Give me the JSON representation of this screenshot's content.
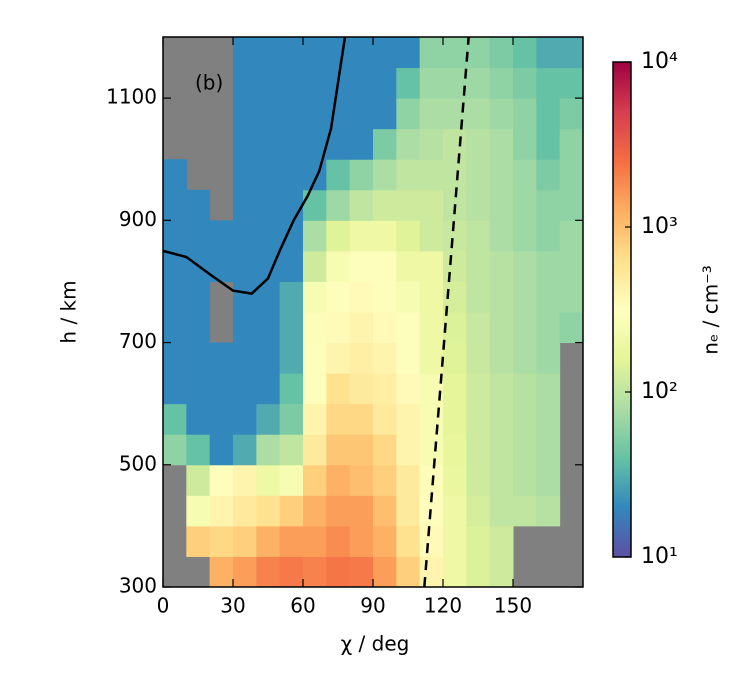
{
  "chart_data": {
    "type": "heatmap",
    "annotation": "(b)",
    "xlabel": "χ / deg",
    "ylabel": "h / km",
    "colorbar_label": "nₑ / cm⁻³",
    "xlim": [
      0,
      180
    ],
    "ylim": [
      300,
      1200
    ],
    "xticks": [
      0,
      30,
      60,
      90,
      120,
      150
    ],
    "yticks": [
      300,
      500,
      700,
      900,
      1100
    ],
    "xbins": [
      0,
      10,
      20,
      30,
      40,
      50,
      60,
      70,
      80,
      90,
      100,
      110,
      120,
      130,
      140,
      150,
      160,
      170,
      180
    ],
    "ybins": [
      300,
      350,
      400,
      450,
      500,
      550,
      600,
      650,
      700,
      750,
      800,
      850,
      900,
      950,
      1000,
      1050,
      1100,
      1150,
      1200
    ],
    "z": [
      [
        null,
        null,
        1200,
        1500,
        2000,
        2200,
        2000,
        2300,
        2200,
        1500,
        800,
        400,
        200,
        140,
        120,
        null,
        null,
        null
      ],
      [
        null,
        800,
        700,
        800,
        1200,
        1500,
        1500,
        1800,
        1500,
        1200,
        600,
        350,
        200,
        140,
        120,
        null,
        null,
        null
      ],
      [
        null,
        250,
        400,
        500,
        600,
        800,
        1200,
        1500,
        1500,
        1000,
        500,
        300,
        200,
        130,
        100,
        100,
        90,
        null
      ],
      [
        null,
        120,
        300,
        400,
        200,
        250,
        800,
        1200,
        1000,
        800,
        500,
        280,
        180,
        120,
        100,
        90,
        80,
        null
      ],
      [
        60,
        40,
        20,
        30,
        80,
        100,
        500,
        900,
        900,
        700,
        400,
        250,
        170,
        120,
        100,
        90,
        80,
        null
      ],
      [
        40,
        20,
        20,
        20,
        30,
        50,
        400,
        700,
        700,
        500,
        400,
        250,
        160,
        120,
        100,
        90,
        80,
        null
      ],
      [
        20,
        20,
        20,
        20,
        20,
        40,
        300,
        600,
        500,
        450,
        350,
        250,
        160,
        120,
        100,
        90,
        80,
        null
      ],
      [
        20,
        20,
        20,
        20,
        20,
        30,
        300,
        400,
        450,
        400,
        300,
        200,
        150,
        110,
        90,
        80,
        70,
        null
      ],
      [
        20,
        20,
        null,
        20,
        20,
        30,
        280,
        350,
        400,
        350,
        300,
        200,
        140,
        110,
        90,
        80,
        70,
        60
      ],
      [
        20,
        20,
        null,
        20,
        20,
        30,
        250,
        300,
        350,
        300,
        250,
        200,
        130,
        100,
        90,
        80,
        70,
        70
      ],
      [
        20,
        20,
        20,
        20,
        20,
        20,
        120,
        250,
        300,
        300,
        200,
        200,
        120,
        100,
        90,
        80,
        70,
        70
      ],
      [
        20,
        20,
        20,
        20,
        20,
        20,
        80,
        150,
        200,
        200,
        150,
        120,
        110,
        100,
        80,
        70,
        60,
        70
      ],
      [
        20,
        20,
        null,
        20,
        20,
        20,
        40,
        70,
        100,
        120,
        120,
        120,
        100,
        90,
        80,
        70,
        60,
        60
      ],
      [
        20,
        null,
        null,
        20,
        20,
        20,
        20,
        40,
        60,
        80,
        100,
        100,
        100,
        90,
        80,
        70,
        50,
        60
      ],
      [
        null,
        null,
        null,
        20,
        20,
        20,
        20,
        20,
        20,
        50,
        80,
        90,
        100,
        90,
        80,
        60,
        40,
        60
      ],
      [
        null,
        null,
        null,
        20,
        20,
        20,
        20,
        20,
        20,
        20,
        60,
        80,
        80,
        80,
        70,
        60,
        40,
        50
      ],
      [
        null,
        null,
        null,
        20,
        20,
        20,
        20,
        20,
        20,
        20,
        40,
        70,
        70,
        70,
        60,
        50,
        40,
        40
      ],
      [
        null,
        null,
        null,
        20,
        20,
        20,
        20,
        20,
        20,
        20,
        20,
        60,
        60,
        60,
        50,
        40,
        30,
        30
      ]
    ],
    "missing_color": "#808080",
    "clim": [
      10,
      10000
    ],
    "color_scale": "log",
    "cticks": [
      {
        "value": 10,
        "label": "10¹"
      },
      {
        "value": 100,
        "label": "10²"
      },
      {
        "value": 1000,
        "label": "10³"
      },
      {
        "value": 10000,
        "label": "10⁴"
      }
    ],
    "colormap": [
      "#5e4fa2",
      "#3288bd",
      "#66c2a5",
      "#abdda4",
      "#e6f598",
      "#ffffbf",
      "#fee08b",
      "#fdae61",
      "#f46d43",
      "#d53e4f",
      "#9e0142"
    ],
    "lines": [
      {
        "color": "#000000",
        "style": "solid",
        "x": [
          0,
          10,
          20,
          30,
          38,
          45,
          50,
          56,
          62,
          67,
          72,
          76,
          78
        ],
        "y": [
          850,
          840,
          812,
          785,
          780,
          805,
          850,
          900,
          940,
          981,
          1050,
          1150,
          1200
        ]
      },
      {
        "color": "#000000",
        "style": "dashed",
        "x": [
          112,
          131
        ],
        "y": [
          300,
          1200
        ]
      }
    ]
  }
}
